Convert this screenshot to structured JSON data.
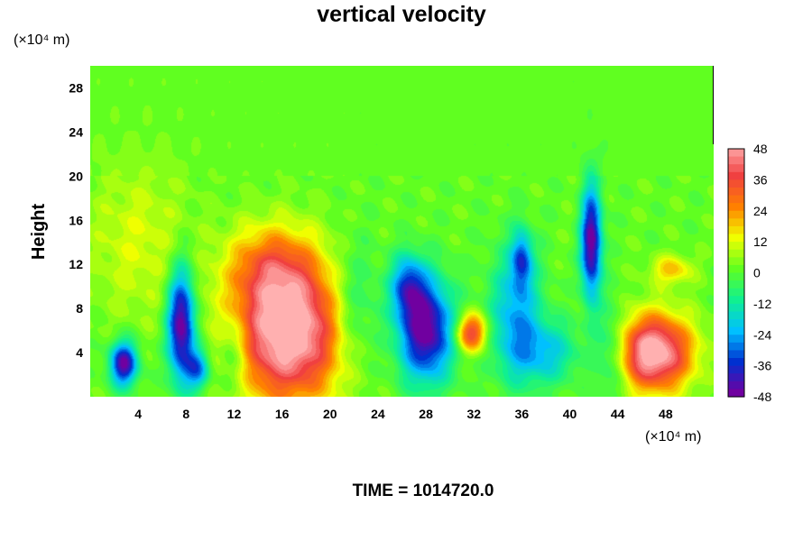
{
  "chart_data": {
    "type": "heatmap",
    "title": "vertical velocity",
    "ylabel": "Height",
    "y_unit_label": "(×10⁴ m)",
    "x_unit_label": "(×10⁴ m)",
    "xlabel": "",
    "xlim": [
      0,
      52
    ],
    "ylim": [
      0,
      30
    ],
    "x_ticks": [
      "4",
      "8",
      "12",
      "16",
      "20",
      "24",
      "28",
      "32",
      "36",
      "40",
      "44",
      "48"
    ],
    "y_ticks": [
      "4",
      "8",
      "12",
      "16",
      "20",
      "24",
      "28"
    ],
    "colorbar": {
      "range": [
        -48,
        48
      ],
      "ticks": [
        "48",
        "36",
        "24",
        "12",
        "0",
        "-12",
        "-24",
        "-36",
        "-48"
      ],
      "colors": [
        "#ffb0b0",
        "#f04040",
        "#ff8000",
        "#f0ff00",
        "#60ff20",
        "#10f090",
        "#00c0ff",
        "#0030d0",
        "#7000a0"
      ]
    },
    "background_value": 0,
    "features": [
      {
        "x": 2.8,
        "y": 3.0,
        "sx": 0.8,
        "sy": 1.4,
        "amp": -48
      },
      {
        "x": 7.6,
        "y": 6.5,
        "sx": 0.8,
        "sy": 3.5,
        "amp": -52
      },
      {
        "x": 9.0,
        "y": 2.5,
        "sx": 0.7,
        "sy": 1.3,
        "amp": -30
      },
      {
        "x": 16.5,
        "y": 6.0,
        "sx": 3.3,
        "sy": 4.5,
        "amp": 56
      },
      {
        "x": 15.0,
        "y": 12.0,
        "sx": 2.5,
        "sy": 2.5,
        "amp": 18
      },
      {
        "x": 28.0,
        "y": 6.0,
        "sx": 1.6,
        "sy": 3.2,
        "amp": -50
      },
      {
        "x": 26.5,
        "y": 10.0,
        "sx": 1.0,
        "sy": 2.0,
        "amp": -30
      },
      {
        "x": 31.8,
        "y": 5.8,
        "sx": 0.9,
        "sy": 1.2,
        "amp": 38
      },
      {
        "x": 35.5,
        "y": 7.5,
        "sx": 1.5,
        "sy": 4.0,
        "amp": -25
      },
      {
        "x": 36.0,
        "y": 12.5,
        "sx": 0.6,
        "sy": 1.8,
        "amp": -28
      },
      {
        "x": 41.8,
        "y": 14.0,
        "sx": 0.6,
        "sy": 3.5,
        "amp": -50
      },
      {
        "x": 47.0,
        "y": 4.0,
        "sx": 2.2,
        "sy": 2.4,
        "amp": 54
      },
      {
        "x": 48.5,
        "y": 11.5,
        "sx": 1.2,
        "sy": 0.9,
        "amp": 18
      },
      {
        "x": 4.0,
        "y": 14.0,
        "sx": 3.0,
        "sy": 5.0,
        "amp": 10
      },
      {
        "x": 22.0,
        "y": 8.0,
        "sx": 1.5,
        "sy": 4.0,
        "amp": -15
      },
      {
        "x": 38.0,
        "y": 4.0,
        "sx": 2.0,
        "sy": 2.0,
        "amp": -20
      },
      {
        "x": 12.0,
        "y": 4.0,
        "sx": 1.0,
        "sy": 2.5,
        "amp": -15
      },
      {
        "x": 43.5,
        "y": 4.0,
        "sx": 1.0,
        "sy": 3.0,
        "amp": -18
      }
    ],
    "grid": false,
    "legend": "colorbar-right"
  },
  "footer": {
    "time_label": "TIME = 1014720.0"
  }
}
